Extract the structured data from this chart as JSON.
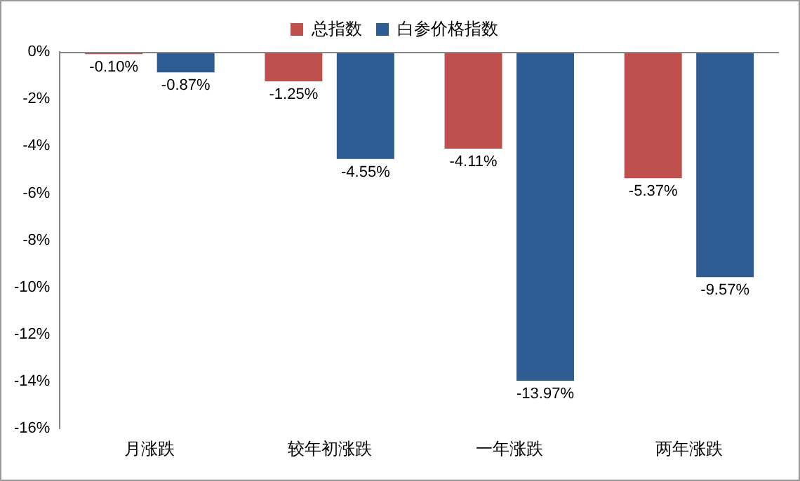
{
  "chart_data": {
    "type": "bar",
    "categories": [
      "月涨跌",
      "较年初涨跌",
      "一年涨跌",
      "两年涨跌"
    ],
    "series": [
      {
        "name": "总指数",
        "color": "#c0504d",
        "values": [
          -0.1,
          -1.25,
          -4.11,
          -5.37
        ],
        "value_labels": [
          "-0.10%",
          "-1.25%",
          "-4.11%",
          "-5.37%"
        ]
      },
      {
        "name": "白参价格指数",
        "color": "#2e5b92",
        "values": [
          -0.87,
          -4.55,
          -13.97,
          -9.57
        ],
        "value_labels": [
          "-0.87%",
          "-4.55%",
          "-13.97%",
          "-9.57%"
        ]
      }
    ],
    "ylim": [
      -16,
      0
    ],
    "yticks": [
      {
        "value": 0,
        "label": "0%"
      },
      {
        "value": -2,
        "label": "-2%"
      },
      {
        "value": -4,
        "label": "-4%"
      },
      {
        "value": -6,
        "label": "-6%"
      },
      {
        "value": -8,
        "label": "-8%"
      },
      {
        "value": -10,
        "label": "-10%"
      },
      {
        "value": -12,
        "label": "-12%"
      },
      {
        "value": -14,
        "label": "-14%"
      },
      {
        "value": -16,
        "label": "-16%"
      }
    ],
    "grid": false,
    "legend": "top"
  }
}
